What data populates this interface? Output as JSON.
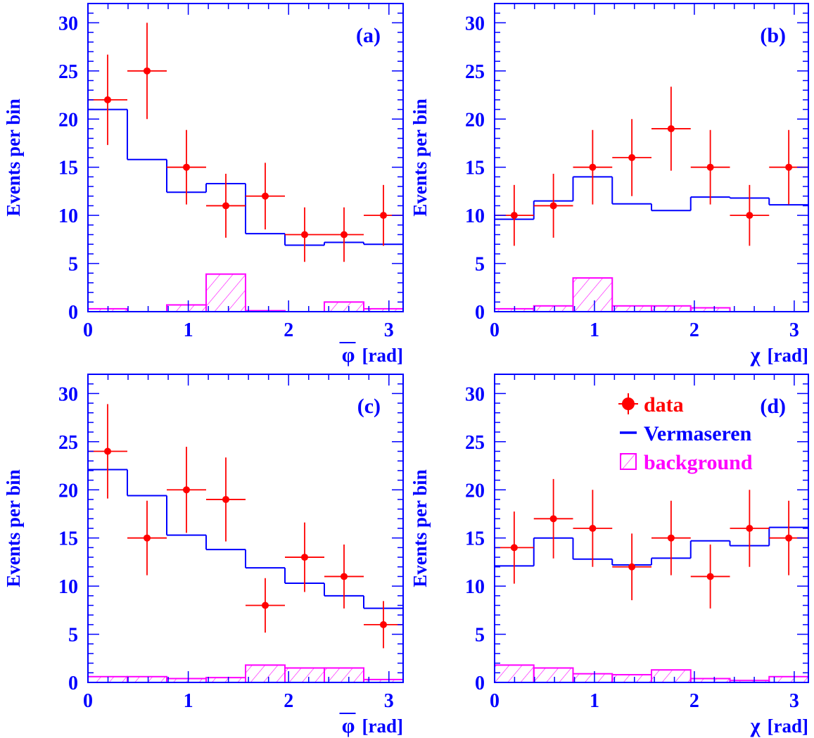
{
  "colors": {
    "axis": "#0000ff",
    "data": "#ff0000",
    "model": "#0000ff",
    "background": "#ff00ff"
  },
  "legend": {
    "entries": [
      {
        "key": "data",
        "label": "data"
      },
      {
        "key": "model",
        "label": "Vermaseren"
      },
      {
        "key": "background",
        "label": "background"
      }
    ]
  },
  "chart_data": [
    {
      "type": "bar",
      "panel_label": "(a)",
      "xlabel_symbol": "φ",
      "xlabel_unit": "[rad]",
      "xlabel_overline": true,
      "ylabel": "Events per bin",
      "xlim": [
        0,
        3.1416
      ],
      "ylim": [
        0,
        32
      ],
      "xticks": [
        "0",
        "1",
        "2",
        "3"
      ],
      "yticks": [
        "0",
        "5",
        "10",
        "15",
        "20",
        "25",
        "30"
      ],
      "bin_edges": [
        0,
        0.3927,
        0.7854,
        1.1781,
        1.5708,
        1.9635,
        2.3562,
        2.7489,
        3.1416
      ],
      "data": {
        "values": [
          22,
          25,
          15,
          11,
          12,
          8,
          8,
          10
        ],
        "errors": [
          4.69,
          5.0,
          3.87,
          3.32,
          3.46,
          2.83,
          2.83,
          3.16
        ]
      },
      "model": [
        21.0,
        15.8,
        12.4,
        13.3,
        8.1,
        6.9,
        7.2,
        7.0
      ],
      "background": [
        0.3,
        0.0,
        0.7,
        3.9,
        0.1,
        0.0,
        1.0,
        0.3
      ],
      "legend": false
    },
    {
      "type": "bar",
      "panel_label": "(b)",
      "xlabel_symbol": "χ",
      "xlabel_unit": "[rad]",
      "xlabel_overline": false,
      "ylabel": "Events per bin",
      "xlim": [
        0,
        3.1416
      ],
      "ylim": [
        0,
        32
      ],
      "xticks": [
        "0",
        "1",
        "2",
        "3"
      ],
      "yticks": [
        "0",
        "5",
        "10",
        "15",
        "20",
        "25",
        "30"
      ],
      "bin_edges": [
        0,
        0.3927,
        0.7854,
        1.1781,
        1.5708,
        1.9635,
        2.3562,
        2.7489,
        3.1416
      ],
      "data": {
        "values": [
          10,
          11,
          15,
          16,
          19,
          15,
          10,
          15
        ],
        "errors": [
          3.16,
          3.32,
          3.87,
          4.0,
          4.36,
          3.87,
          3.16,
          3.87
        ]
      },
      "model": [
        9.6,
        11.5,
        14.0,
        11.2,
        10.5,
        11.9,
        11.8,
        11.1
      ],
      "background": [
        0.3,
        0.6,
        3.5,
        0.6,
        0.6,
        0.4,
        0.0,
        0.0
      ],
      "legend": false
    },
    {
      "type": "bar",
      "panel_label": "(c)",
      "xlabel_symbol": "φ",
      "xlabel_unit": "[rad]",
      "xlabel_overline": true,
      "ylabel": "Events per bin",
      "xlim": [
        0,
        3.1416
      ],
      "ylim": [
        0,
        32
      ],
      "xticks": [
        "0",
        "1",
        "2",
        "3"
      ],
      "yticks": [
        "0",
        "5",
        "10",
        "15",
        "20",
        "25",
        "30"
      ],
      "bin_edges": [
        0,
        0.3927,
        0.7854,
        1.1781,
        1.5708,
        1.9635,
        2.3562,
        2.7489,
        3.1416
      ],
      "data": {
        "values": [
          24,
          15,
          20,
          19,
          8,
          13,
          11,
          6
        ],
        "errors": [
          4.9,
          3.87,
          4.47,
          4.36,
          2.83,
          3.61,
          3.32,
          2.45
        ]
      },
      "model": [
        22.1,
        19.4,
        15.3,
        13.8,
        11.9,
        10.3,
        9.0,
        7.7
      ],
      "background": [
        0.6,
        0.6,
        0.4,
        0.5,
        1.8,
        1.5,
        1.5,
        0.3
      ],
      "legend": false
    },
    {
      "type": "bar",
      "panel_label": "(d)",
      "xlabel_symbol": "χ",
      "xlabel_unit": "[rad]",
      "xlabel_overline": false,
      "ylabel": "Events per bin",
      "xlim": [
        0,
        3.1416
      ],
      "ylim": [
        0,
        32
      ],
      "xticks": [
        "0",
        "1",
        "2",
        "3"
      ],
      "yticks": [
        "0",
        "5",
        "10",
        "15",
        "20",
        "25",
        "30"
      ],
      "bin_edges": [
        0,
        0.3927,
        0.7854,
        1.1781,
        1.5708,
        1.9635,
        2.3562,
        2.7489,
        3.1416
      ],
      "data": {
        "values": [
          14,
          17,
          16,
          12,
          15,
          11,
          16,
          15
        ],
        "errors": [
          3.74,
          4.12,
          4.0,
          3.46,
          3.87,
          3.32,
          4.0,
          3.87
        ]
      },
      "model": [
        12.1,
        15.0,
        12.8,
        12.2,
        12.9,
        14.7,
        14.2,
        16.1
      ],
      "background": [
        1.8,
        1.5,
        0.9,
        0.8,
        1.3,
        0.4,
        0.2,
        0.6
      ],
      "legend": true
    }
  ]
}
